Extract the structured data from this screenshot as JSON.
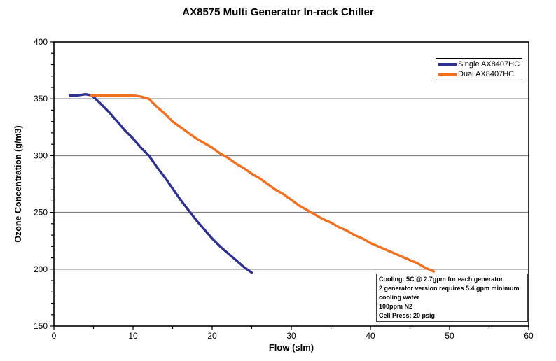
{
  "chart": {
    "title": "AX8575 Multi Generator In-rack Chiller",
    "xlabel": "Flow (slm)",
    "ylabel": "Ozone Concentration (g/m3)"
  },
  "annotation": {
    "lines": [
      "Cooling: 5C @ 2.7gpm for each generator",
      "2 generator version requires 5.4 gpm minimum",
      "cooling water",
      "100ppm N2",
      "Cell Press: 20 psig"
    ]
  },
  "chart_data": {
    "type": "line",
    "title": "AX8575 Multi Generator In-rack Chiller",
    "xlabel": "Flow (slm)",
    "ylabel": "Ozone Concentration (g/m3)",
    "xlim": [
      0,
      60
    ],
    "ylim": [
      150,
      400
    ],
    "x_ticks": [
      0,
      10,
      20,
      30,
      40,
      50,
      60
    ],
    "x_minor_tick_step": 5,
    "y_ticks": [
      150,
      200,
      250,
      300,
      350,
      400
    ],
    "y_minor_tick_step": 10,
    "grid": "horizontal-major-only",
    "legend_position": "top-right-inside",
    "axis_color": "#000000",
    "gridline_color": "#7f7f7f",
    "series": [
      {
        "name": "Single AX8407HC",
        "color": "#2e3190",
        "points": [
          [
            2,
            353
          ],
          [
            3,
            353
          ],
          [
            4,
            354
          ],
          [
            4.8,
            353
          ],
          [
            6,
            345
          ],
          [
            7,
            338
          ],
          [
            8,
            330
          ],
          [
            9,
            322
          ],
          [
            10,
            315
          ],
          [
            11,
            307
          ],
          [
            12,
            300
          ],
          [
            13,
            290
          ],
          [
            14,
            281
          ],
          [
            15,
            271
          ],
          [
            16,
            261
          ],
          [
            17,
            252
          ],
          [
            18,
            243
          ],
          [
            19,
            235
          ],
          [
            20,
            227
          ],
          [
            21,
            220
          ],
          [
            22,
            214
          ],
          [
            23,
            208
          ],
          [
            24,
            202
          ],
          [
            25,
            197
          ]
        ]
      },
      {
        "name": "Dual AX8407HC",
        "color": "#f37021",
        "points": [
          [
            4.7,
            353
          ],
          [
            6,
            353
          ],
          [
            7,
            353
          ],
          [
            8,
            353
          ],
          [
            9,
            353
          ],
          [
            10,
            353
          ],
          [
            11,
            352
          ],
          [
            12,
            350
          ],
          [
            13,
            343
          ],
          [
            14,
            337
          ],
          [
            15,
            330
          ],
          [
            16,
            325
          ],
          [
            17,
            320
          ],
          [
            18,
            315
          ],
          [
            19,
            311
          ],
          [
            20,
            307
          ],
          [
            21,
            302
          ],
          [
            22,
            298
          ],
          [
            23,
            293
          ],
          [
            24,
            289
          ],
          [
            25,
            284
          ],
          [
            26,
            280
          ],
          [
            27,
            275
          ],
          [
            28,
            270
          ],
          [
            29,
            266
          ],
          [
            30,
            261
          ],
          [
            31,
            256
          ],
          [
            32,
            252
          ],
          [
            33,
            248
          ],
          [
            34,
            244
          ],
          [
            35,
            241
          ],
          [
            36,
            237
          ],
          [
            37,
            234
          ],
          [
            38,
            230
          ],
          [
            39,
            227
          ],
          [
            40,
            223
          ],
          [
            41,
            220
          ],
          [
            42,
            217
          ],
          [
            43,
            214
          ],
          [
            44,
            211
          ],
          [
            45,
            208
          ],
          [
            46,
            205
          ],
          [
            47,
            201
          ],
          [
            48,
            198
          ]
        ]
      }
    ]
  }
}
